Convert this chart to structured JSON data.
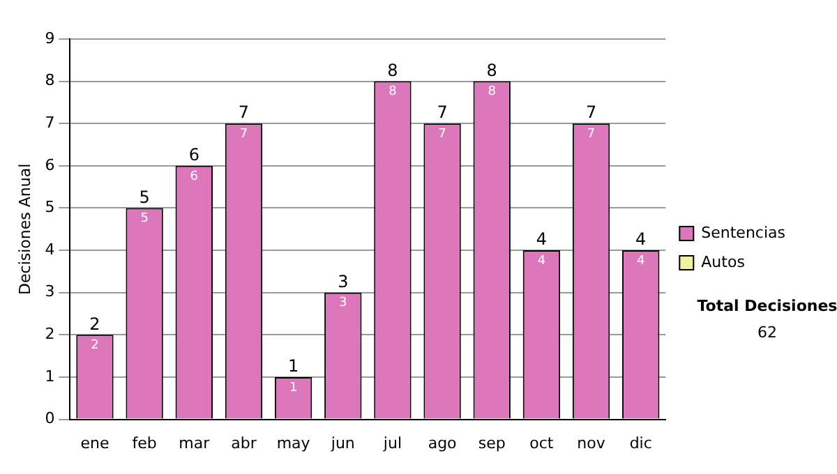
{
  "chart_data": {
    "type": "bar",
    "stacked": true,
    "ylabel": "Decisiones Anual",
    "categories": [
      "ene",
      "feb",
      "mar",
      "abr",
      "may",
      "jun",
      "jul",
      "ago",
      "sep",
      "oct",
      "nov",
      "dic"
    ],
    "series": [
      {
        "name": "Sentencias",
        "color": "#dd77bb",
        "values": [
          2,
          5,
          6,
          7,
          1,
          3,
          8,
          7,
          8,
          4,
          7,
          4
        ],
        "value_labels": [
          "2",
          "5",
          "6",
          "7",
          "1",
          "3",
          "8",
          "7",
          "8",
          "4",
          "7",
          "4"
        ]
      },
      {
        "name": "Autos",
        "color": "#f0f0a0",
        "values": [
          0,
          0,
          0,
          0,
          0,
          0,
          0,
          0,
          0,
          0,
          0,
          0
        ]
      }
    ],
    "totals": [
      "2",
      "5",
      "6",
      "7",
      "1",
      "3",
      "8",
      "7",
      "8",
      "4",
      "7",
      "4"
    ],
    "ylim": [
      0,
      9
    ],
    "yticks": [
      0,
      1,
      2,
      3,
      4,
      5,
      6,
      7,
      8,
      9
    ],
    "grid": "y",
    "legend": "right",
    "annotations": [
      "Total Decisiones",
      "62"
    ]
  }
}
